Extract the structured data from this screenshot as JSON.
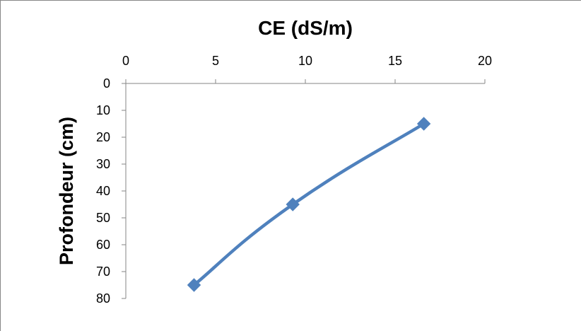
{
  "chart_data": {
    "type": "line",
    "title": "CE (dS/m)",
    "xlabel": "CE (dS/m)",
    "ylabel": "Profondeur  (cm)",
    "x_axis_position": "top",
    "y_axis_inverted": true,
    "xlim": [
      0,
      20
    ],
    "ylim": [
      0,
      80
    ],
    "x_ticks": [
      "0",
      "5",
      "10",
      "15",
      "20"
    ],
    "y_ticks": [
      "0",
      "10",
      "20",
      "30",
      "40",
      "50",
      "60",
      "70",
      "80"
    ],
    "grid": false,
    "legend": "none",
    "line_style": "smooth",
    "marker": "diamond",
    "color": "#4f81bd",
    "series": [
      {
        "points": [
          {
            "x": 3.8,
            "y": 75
          },
          {
            "x": 9.3,
            "y": 45
          },
          {
            "x": 16.6,
            "y": 15
          }
        ]
      }
    ]
  }
}
